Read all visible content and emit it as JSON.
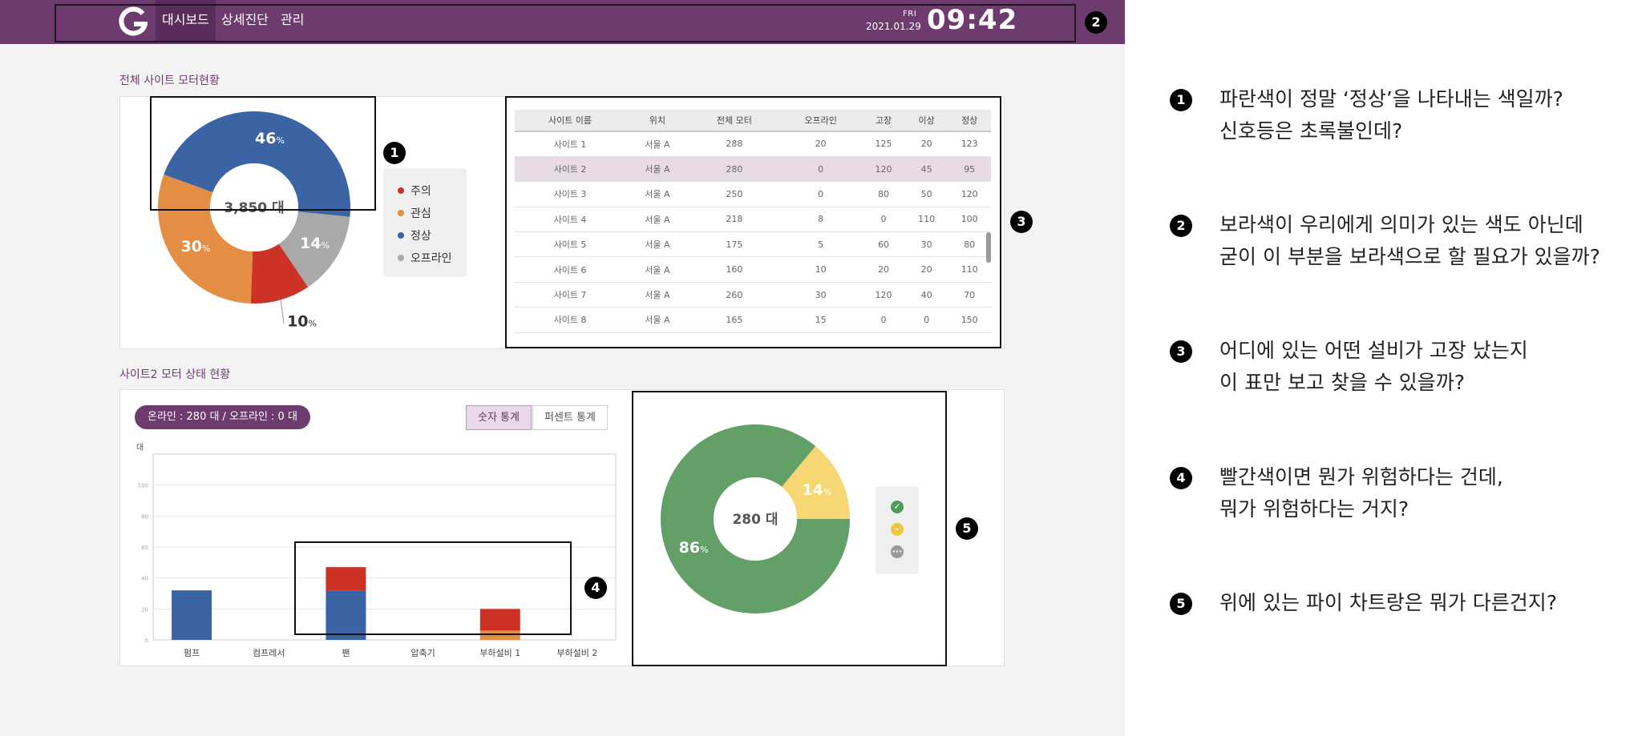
{
  "header": {
    "nav": [
      "대시보드",
      "상세진단",
      "관리"
    ],
    "day": "FRI",
    "date": "2021.01.29",
    "time": "09:42"
  },
  "section1": {
    "title": "전체 사이트 모터현황",
    "donut": {
      "center_label": "3,850 대",
      "slices": [
        {
          "label": "정상",
          "percent": 46,
          "color": "#3b64a5",
          "text": "46",
          "unit": "%"
        },
        {
          "label": "오프라인",
          "percent": 14,
          "color": "#a9a9a9",
          "text": "14",
          "unit": "%"
        },
        {
          "label": "주의",
          "percent": 10,
          "color": "#cc3326",
          "text": "10",
          "unit": "%"
        },
        {
          "label": "관심",
          "percent": 30,
          "color": "#e38e44",
          "text": "30",
          "unit": "%"
        }
      ]
    },
    "legend": [
      {
        "label": "주의",
        "color": "#cc3326"
      },
      {
        "label": "관심",
        "color": "#e38e44"
      },
      {
        "label": "정상",
        "color": "#3b64a5"
      },
      {
        "label": "오프라인",
        "color": "#a9a9a9"
      }
    ],
    "table": {
      "headers": [
        "사이트 이름",
        "위치",
        "전체 모터",
        "오프라인",
        "고장",
        "이상",
        "정상"
      ],
      "rows": [
        [
          "사이트 1",
          "서울 A",
          "288",
          "20",
          "125",
          "20",
          "123"
        ],
        [
          "사이트 2",
          "서울 A",
          "280",
          "0",
          "120",
          "45",
          "95"
        ],
        [
          "사이트 3",
          "서울 A",
          "250",
          "0",
          "80",
          "50",
          "120"
        ],
        [
          "사이트 4",
          "서울 A",
          "218",
          "8",
          "0",
          "110",
          "100"
        ],
        [
          "사이트 5",
          "서울 A",
          "175",
          "5",
          "60",
          "30",
          "80"
        ],
        [
          "사이트 6",
          "서울 A",
          "160",
          "10",
          "20",
          "20",
          "110"
        ],
        [
          "사이트 7",
          "서울 A",
          "260",
          "30",
          "120",
          "40",
          "70"
        ],
        [
          "사이트 8",
          "서울 A",
          "165",
          "15",
          "0",
          "0",
          "150"
        ]
      ],
      "selected_row": 1
    }
  },
  "section2": {
    "title": "사이트2 모터 상태 현황",
    "online_text": "온라인 : 280 대 / 오프라인 : 0 대",
    "toggle": [
      "숫자 통계",
      "퍼센트 통계"
    ],
    "active_toggle": 0,
    "donut": {
      "center_label": "280 대",
      "slices": [
        {
          "percent": 86,
          "color": "#62a068",
          "text": "86",
          "unit": "%"
        },
        {
          "percent": 14,
          "color": "#f7d774",
          "text": "14",
          "unit": "%"
        }
      ]
    },
    "status_icons": [
      {
        "name": "check-icon",
        "color": "#4f9a58",
        "glyph": "✓"
      },
      {
        "name": "minus-icon",
        "color": "#f0c53e",
        "glyph": "–"
      },
      {
        "name": "dots-icon",
        "color": "#9a9a9a",
        "glyph": "···"
      }
    ]
  },
  "chart_data": {
    "type": "bar",
    "stacked": true,
    "ylabel": "대",
    "ylim": [
      0,
      120
    ],
    "yticks": [
      "0",
      "20",
      "40",
      "60",
      "80",
      "100"
    ],
    "categories": [
      "펌프",
      "컴프레서",
      "팬",
      "압축기",
      "부하설비 1",
      "부하설비 2"
    ],
    "series": [
      {
        "color": "#3b64a5",
        "values": [
          32,
          0,
          32,
          0,
          0,
          0
        ]
      },
      {
        "color": "#e38e44",
        "values": [
          0,
          0,
          0,
          0,
          6,
          0
        ]
      },
      {
        "color": "#cc3326",
        "values": [
          0,
          0,
          15,
          0,
          14,
          0
        ]
      }
    ],
    "grid": true
  },
  "annotations": [
    {
      "number": "1",
      "lines": [
        "파란색이 정말 ‘정상’을 나타내는 색일까?",
        "신호등은 초록불인데?"
      ]
    },
    {
      "number": "2",
      "lines": [
        "보라색이 우리에게 의미가 있는 색도 아닌데",
        "굳이 이 부분을 보라색으로 할 필요가 있을까?"
      ]
    },
    {
      "number": "3",
      "lines": [
        "어디에 있는 어떤 설비가 고장 났는지",
        "이 표만 보고 찾을 수 있을까?"
      ]
    },
    {
      "number": "4",
      "lines": [
        "빨간색이면 뭔가 위험하다는 건데,",
        "뭐가 위험하다는 거지?"
      ]
    },
    {
      "number": "5",
      "lines": [
        "위에 있는 파이 차트랑은 뭐가 다른건지?"
      ]
    }
  ]
}
